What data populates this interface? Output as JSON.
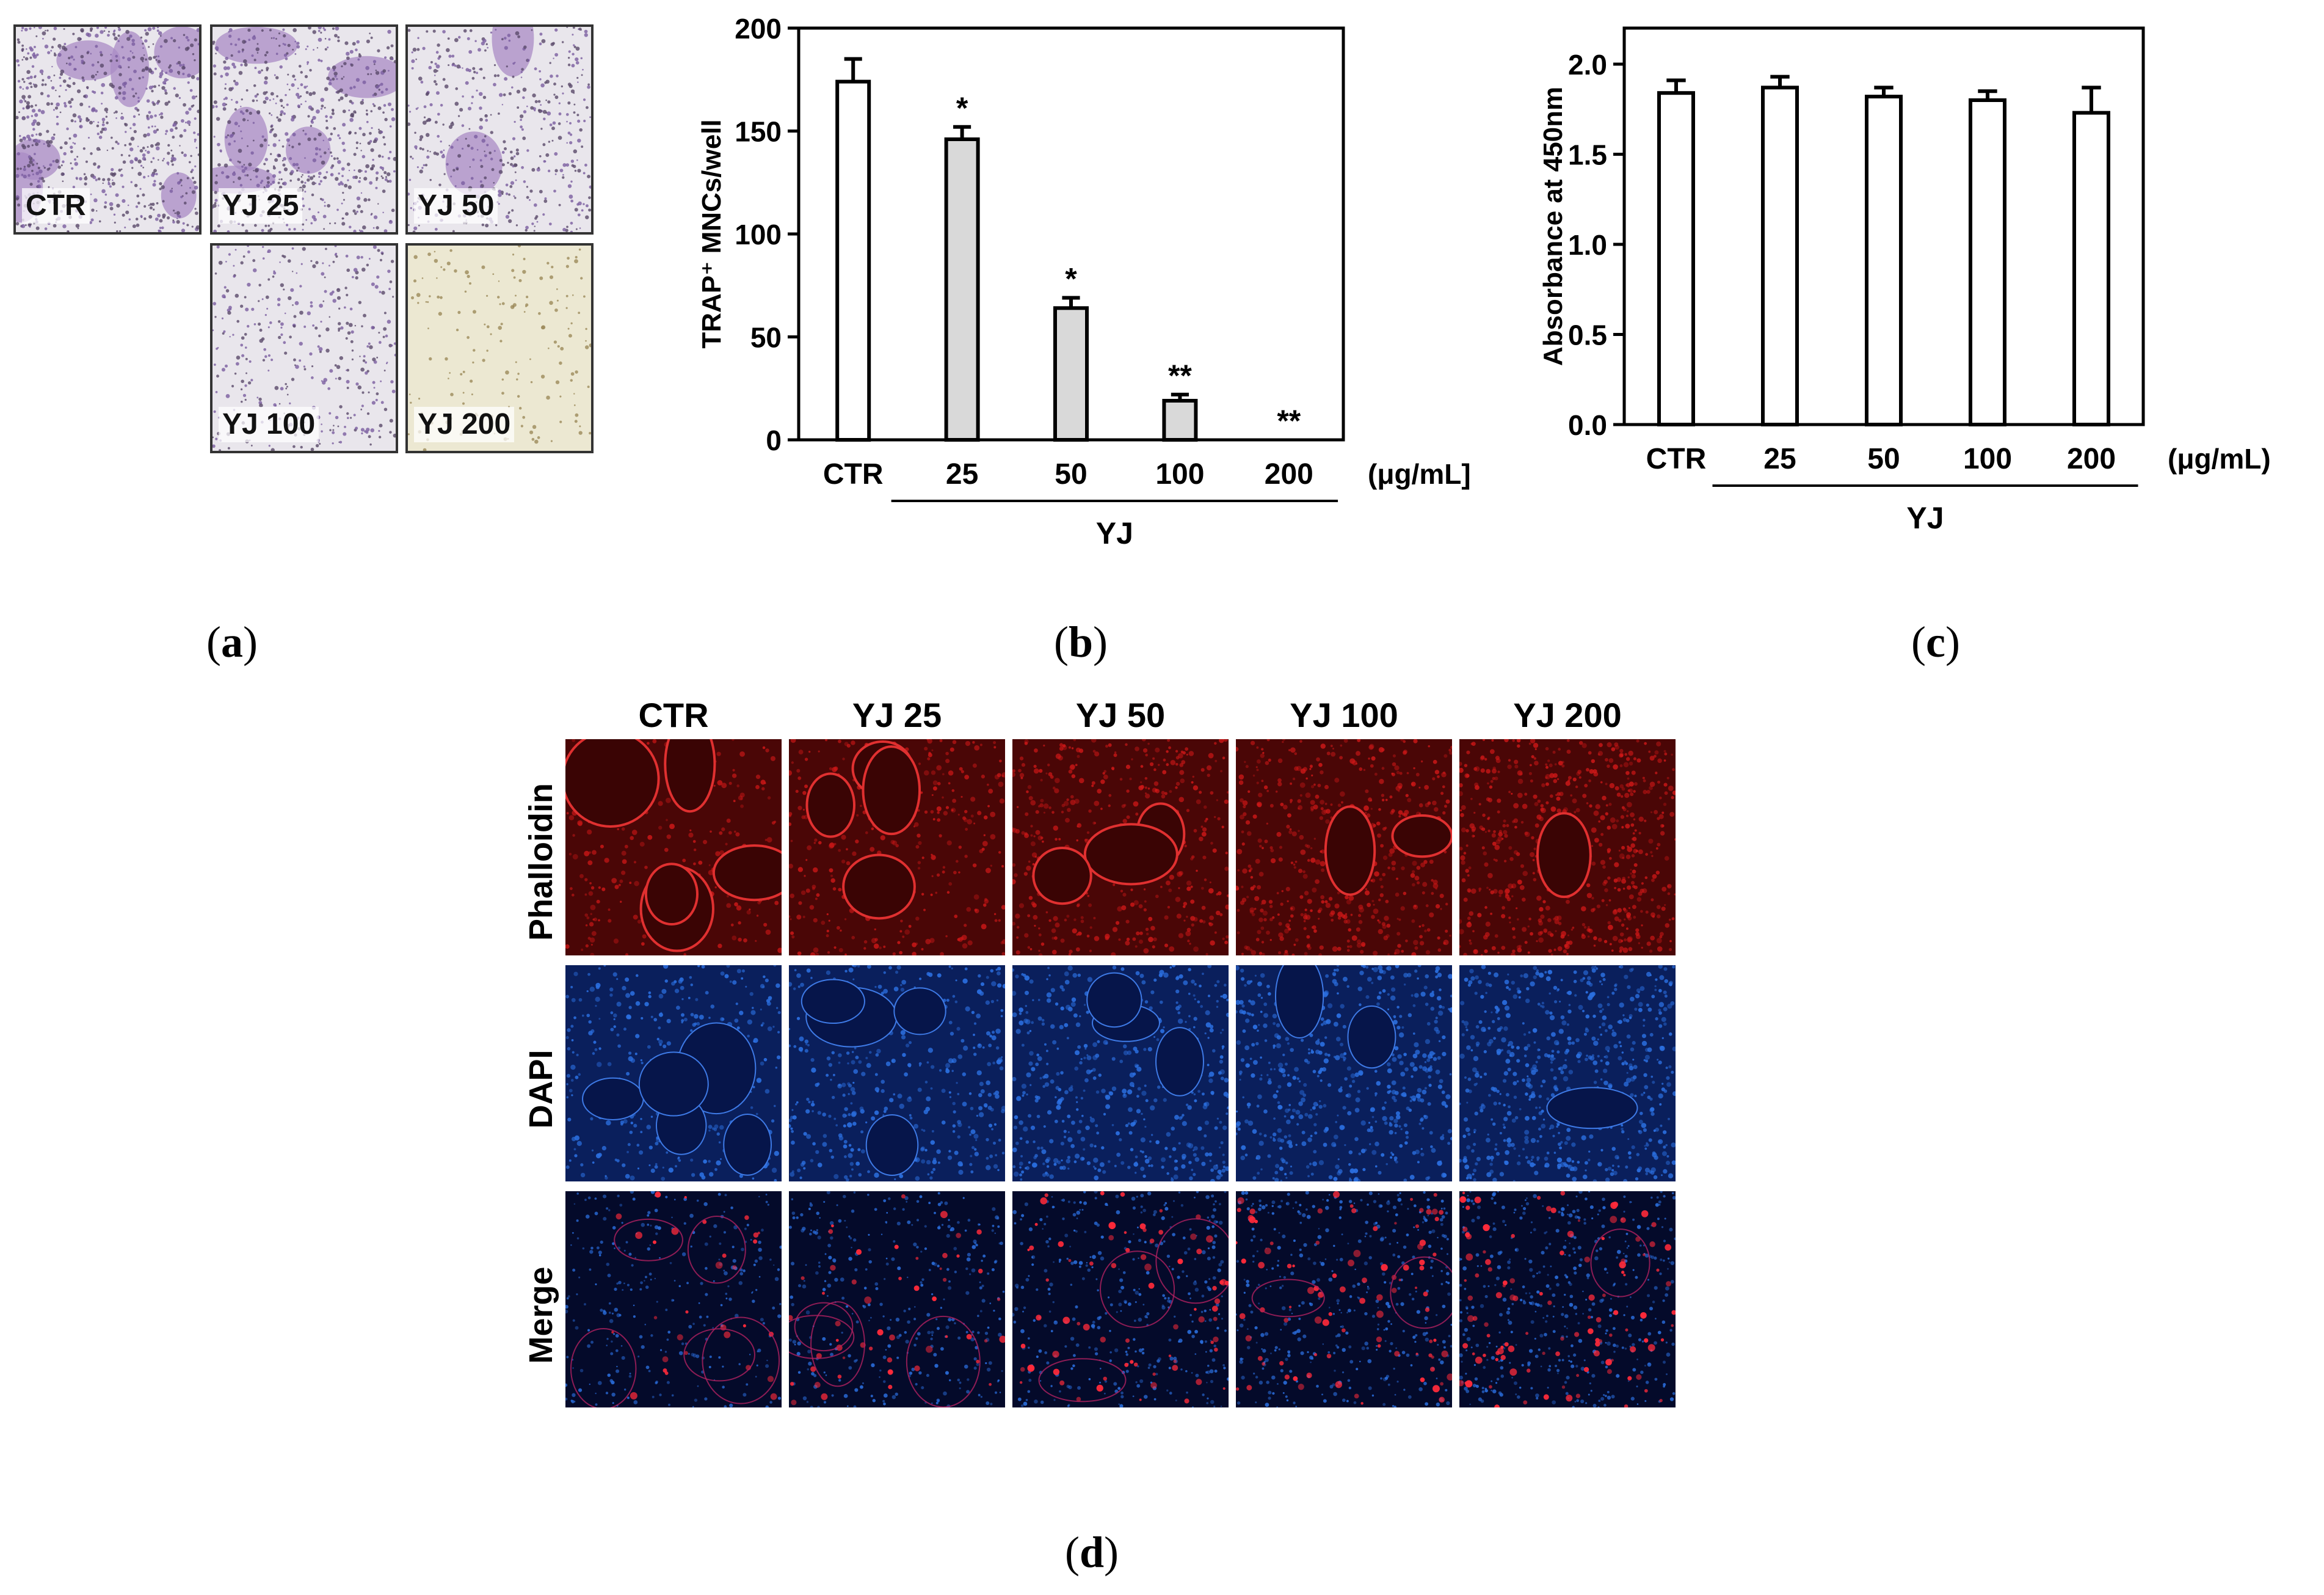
{
  "panel_a": {
    "caption_letter": "a",
    "images": [
      {
        "label": "CTR"
      },
      {
        "label": "YJ 25"
      },
      {
        "label": "YJ 50"
      },
      {
        "label": "YJ 100"
      },
      {
        "label": "YJ 200"
      }
    ]
  },
  "chart_data": [
    {
      "type": "bar",
      "panel": "b",
      "categories": [
        "CTR",
        "25",
        "50",
        "100",
        "200"
      ],
      "values": [
        174,
        146,
        64,
        19,
        0
      ],
      "errors": [
        11,
        6,
        5,
        3,
        0
      ],
      "significance": [
        "",
        "*",
        "*",
        "**",
        "**"
      ],
      "bar_colors": [
        "#ffffff",
        "#d9d9d9",
        "#d9d9d9",
        "#d9d9d9",
        "#d9d9d9"
      ],
      "ylabel": "TRAP⁺ MNCs/well",
      "xunit": "(μg/mL]",
      "group_label": "YJ",
      "ylim": [
        0,
        200
      ],
      "yticks": [
        "0",
        "50",
        "100",
        "150",
        "200"
      ]
    },
    {
      "type": "bar",
      "panel": "c",
      "categories": [
        "CTR",
        "25",
        "50",
        "100",
        "200"
      ],
      "values": [
        1.84,
        1.87,
        1.82,
        1.8,
        1.73
      ],
      "errors": [
        0.07,
        0.06,
        0.05,
        0.05,
        0.14
      ],
      "bar_colors": [
        "#ffffff",
        "#ffffff",
        "#ffffff",
        "#ffffff",
        "#ffffff"
      ],
      "ylabel": "Absorbance at 450nm",
      "xunit": "(μg/mL)",
      "group_label": "YJ",
      "ylim": [
        0.0,
        2.2
      ],
      "yticks": [
        "0.0",
        "0.5",
        "1.0",
        "1.5",
        "2.0"
      ]
    }
  ],
  "panel_b": {
    "caption_letter": "b"
  },
  "panel_c": {
    "caption_letter": "c"
  },
  "panel_d": {
    "caption_letter": "d",
    "columns": [
      "CTR",
      "YJ 25",
      "YJ 50",
      "YJ 100",
      "YJ 200"
    ],
    "rows": [
      "Phalloidin",
      "DAPI",
      "Merge"
    ],
    "colors": {
      "phalloidin": "#d01818",
      "dapi": "#2b6fe0",
      "merge_bg": "#040a2a"
    }
  }
}
